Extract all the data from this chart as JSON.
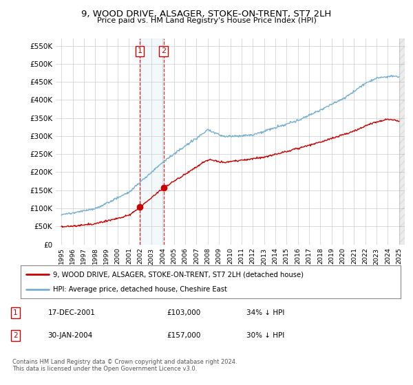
{
  "title": "9, WOOD DRIVE, ALSAGER, STOKE-ON-TRENT, ST7 2LH",
  "subtitle": "Price paid vs. HM Land Registry's House Price Index (HPI)",
  "ylim": [
    0,
    570000
  ],
  "xlim_start": 1994.5,
  "xlim_end": 2025.5,
  "legend_line1": "9, WOOD DRIVE, ALSAGER, STOKE-ON-TRENT, ST7 2LH (detached house)",
  "legend_line2": "HPI: Average price, detached house, Cheshire East",
  "transaction1_date": "17-DEC-2001",
  "transaction1_price": "£103,000",
  "transaction1_hpi": "34% ↓ HPI",
  "transaction1_x": 2001.96,
  "transaction1_y": 103000,
  "transaction2_date": "30-JAN-2004",
  "transaction2_price": "£157,000",
  "transaction2_hpi": "30% ↓ HPI",
  "transaction2_x": 2004.08,
  "transaction2_y": 157000,
  "footnote": "Contains HM Land Registry data © Crown copyright and database right 2024.\nThis data is licensed under the Open Government Licence v3.0.",
  "hpi_color": "#74afd3",
  "price_color": "#cc0000",
  "marker_color": "#cc0000",
  "vline_color": "#cc0000",
  "vspan_color": "#d0e4f0",
  "background_color": "#ffffff",
  "grid_color": "#cccccc"
}
